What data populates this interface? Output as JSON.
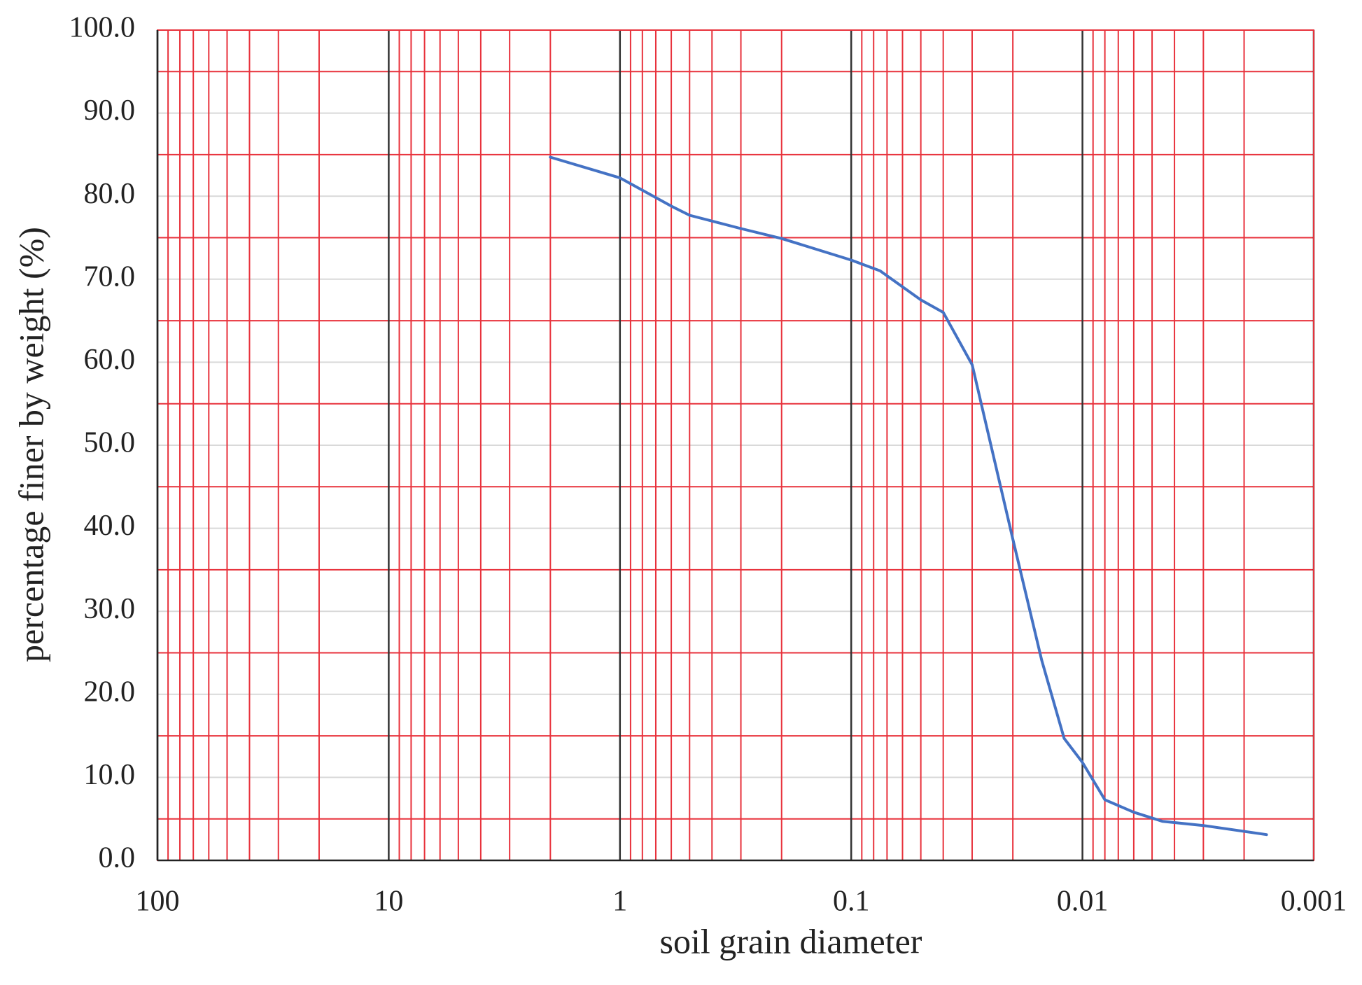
{
  "chart_data": {
    "type": "line",
    "x_label": "soil grain diameter",
    "y_label": "percentage finer by weight (%)",
    "x_scale": "log",
    "x_reversed": true,
    "grid": true,
    "xlim": [
      100,
      0.001
    ],
    "ylim": [
      0,
      100
    ],
    "xticks": [
      100,
      10,
      1,
      0.1,
      0.01,
      0.001
    ],
    "xminor": [
      90,
      80,
      70,
      60,
      50,
      40,
      30,
      20,
      9,
      8,
      7,
      6,
      5,
      4,
      3,
      2,
      0.9,
      0.8,
      0.7,
      0.6,
      0.5,
      0.4,
      0.3,
      0.2,
      0.09,
      0.08,
      0.07,
      0.06,
      0.05,
      0.04,
      0.03,
      0.02,
      0.009,
      0.008,
      0.007,
      0.006,
      0.005,
      0.004,
      0.003,
      0.002
    ],
    "yticks": [
      {
        "value": 0,
        "label": "0.0"
      },
      {
        "value": 10,
        "label": "10.0"
      },
      {
        "value": 20,
        "label": "20.0"
      },
      {
        "value": 30,
        "label": "30.0"
      },
      {
        "value": 40,
        "label": "40.0"
      },
      {
        "value": 50,
        "label": "50.0"
      },
      {
        "value": 60,
        "label": "60.0"
      },
      {
        "value": 70,
        "label": "70.0"
      },
      {
        "value": 80,
        "label": "80.0"
      },
      {
        "value": 90,
        "label": "90.0"
      },
      {
        "value": 100,
        "label": "100.0"
      }
    ],
    "yminor": [
      5,
      15,
      25,
      35,
      45,
      55,
      65,
      75,
      85,
      95
    ],
    "minor_grid_color": "#e8323c",
    "major_x_grid_color": "#333333",
    "major_y_grid_color": "#d9d9d9",
    "series": [
      {
        "color": "#4472c4",
        "x": [
          2,
          1,
          0.6,
          0.5,
          0.3,
          0.2,
          0.1,
          0.075,
          0.05,
          0.04,
          0.03,
          0.02,
          0.015,
          0.012,
          0.01,
          0.008,
          0.006,
          0.0045,
          0.003,
          0.0016
        ],
        "values": [
          84.7,
          82.2,
          78.8,
          77.7,
          76.1,
          74.9,
          72.3,
          71.0,
          67.5,
          66.0,
          59.7,
          38.7,
          24.1,
          14.7,
          11.8,
          7.3,
          5.8,
          4.7,
          4.2,
          3.1
        ]
      }
    ]
  }
}
